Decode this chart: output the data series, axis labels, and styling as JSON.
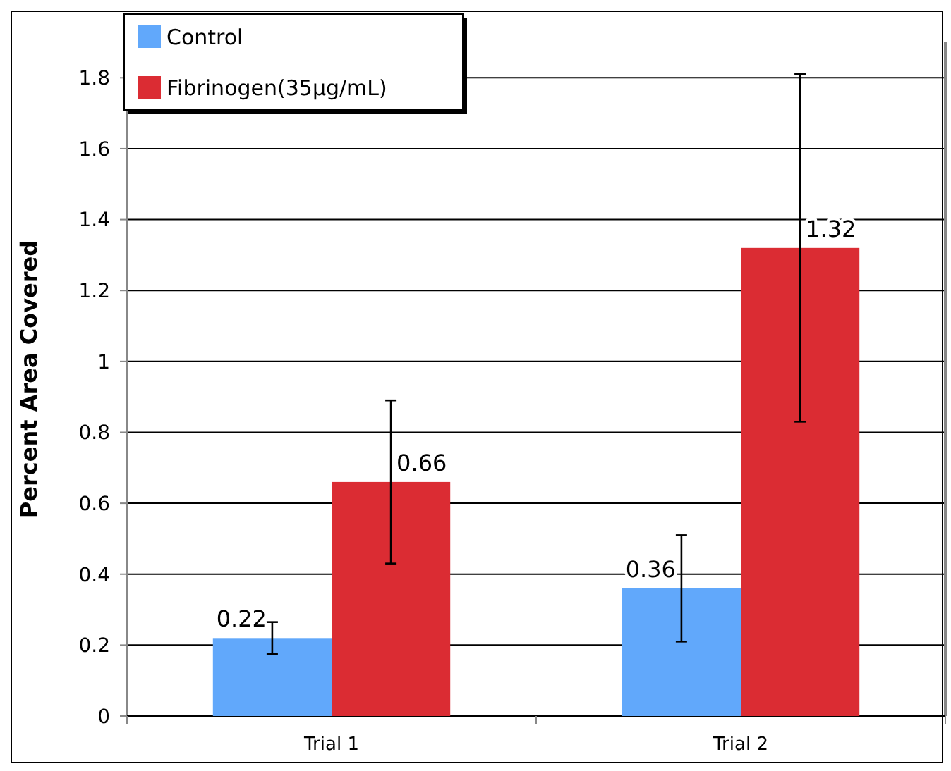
{
  "chart_data": {
    "type": "bar",
    "ylabel": "Percent Area Covered",
    "categories": [
      "Trial 1",
      "Trial 2"
    ],
    "series": [
      {
        "name": "Control",
        "color": "#61a8fb",
        "values": [
          0.22,
          0.36
        ],
        "errors": [
          0.045,
          0.15
        ]
      },
      {
        "name": "Fibrinogen(35µg/mL)",
        "color": "#db2c33",
        "values": [
          0.66,
          1.32
        ],
        "errors": [
          0.23,
          0.49
        ]
      }
    ],
    "ylim": [
      0,
      1.9
    ],
    "yticks": [
      0,
      0.2,
      0.4,
      0.6,
      0.8,
      1,
      1.2,
      1.4,
      1.6,
      1.8
    ],
    "grid": "y",
    "legend": "top left",
    "data_labels": true
  }
}
